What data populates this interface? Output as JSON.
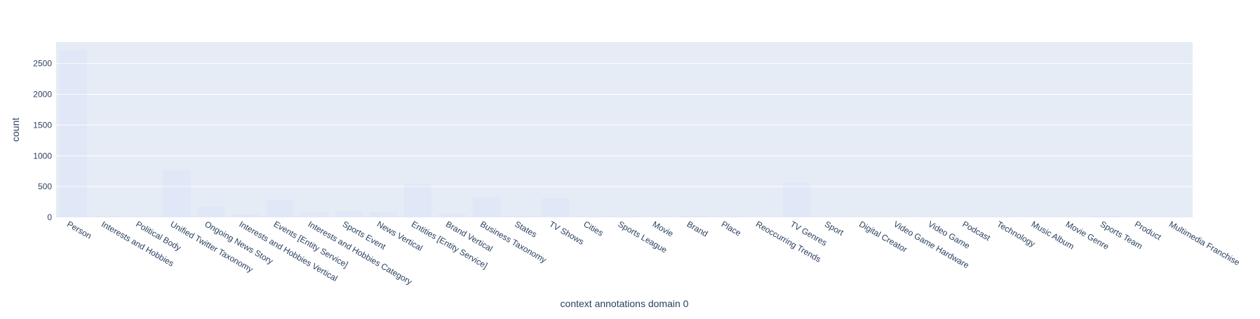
{
  "chart_data": {
    "type": "bar",
    "xlabel": "context annotations domain 0",
    "ylabel": "count",
    "ylim": [
      0,
      2850
    ],
    "yticks": [
      0,
      500,
      1000,
      1500,
      2000,
      2500
    ],
    "grid": true,
    "bar_color": "#636efa",
    "categories": [
      "Person",
      "Interests and Hobbies",
      "Political Body",
      "Unified Twitter Taxonomy",
      "Ongoing News Story",
      "Interests and Hobbies Vertical",
      "Events [Entity Service]",
      "Interests and Hobbies Category",
      "Sports Event",
      "News Vertical",
      "Entities [Entity Service]",
      "Brand Vertical",
      "Business Taxonomy",
      "States",
      "TV Shows",
      "Cities",
      "Sports League",
      "Movie",
      "Brand",
      "Place",
      "Reoccurring Trends",
      "TV Genres",
      "Sport",
      "Digital Creator",
      "Video Game Hardware",
      "Video Game",
      "Podcast",
      "Technology",
      "Music Album",
      "Movie Genre",
      "Sports Team",
      "Product",
      "Multimedia Franchise"
    ],
    "values": [
      2720,
      15,
      5,
      770,
      170,
      50,
      280,
      80,
      100,
      90,
      550,
      60,
      330,
      20,
      310,
      10,
      20,
      10,
      30,
      10,
      5,
      560,
      5,
      5,
      5,
      5,
      5,
      5,
      5,
      5,
      30,
      5,
      5
    ]
  }
}
